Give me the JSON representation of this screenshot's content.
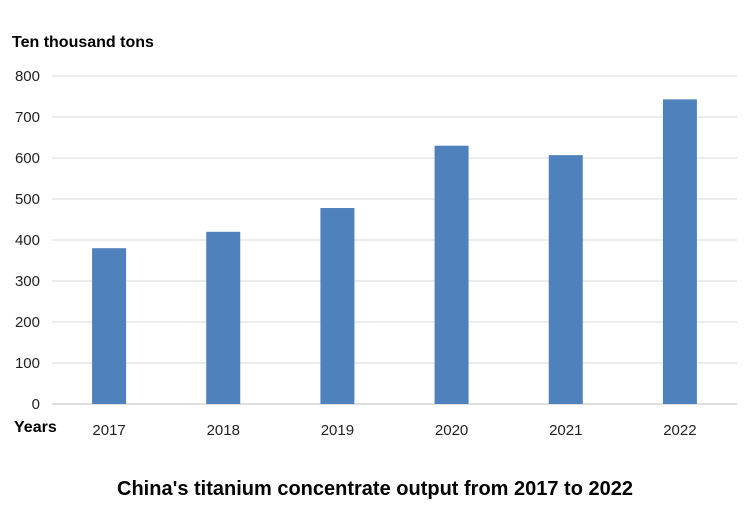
{
  "chart_data": {
    "type": "bar",
    "title": "China's titanium concentrate output from 2017 to 2022",
    "ylabel": "Ten thousand tons",
    "xlabel": "Years",
    "categories": [
      "2017",
      "2018",
      "2019",
      "2020",
      "2021",
      "2022"
    ],
    "values": [
      380,
      420,
      478,
      630,
      607,
      743
    ],
    "ylim": [
      0,
      800
    ],
    "yticks": [
      0,
      100,
      200,
      300,
      400,
      500,
      600,
      700,
      800
    ],
    "grid": true,
    "colors": {
      "bar": "#4f81bd",
      "grid": "#d9d9d9",
      "axis": "#bfbfbf"
    }
  }
}
